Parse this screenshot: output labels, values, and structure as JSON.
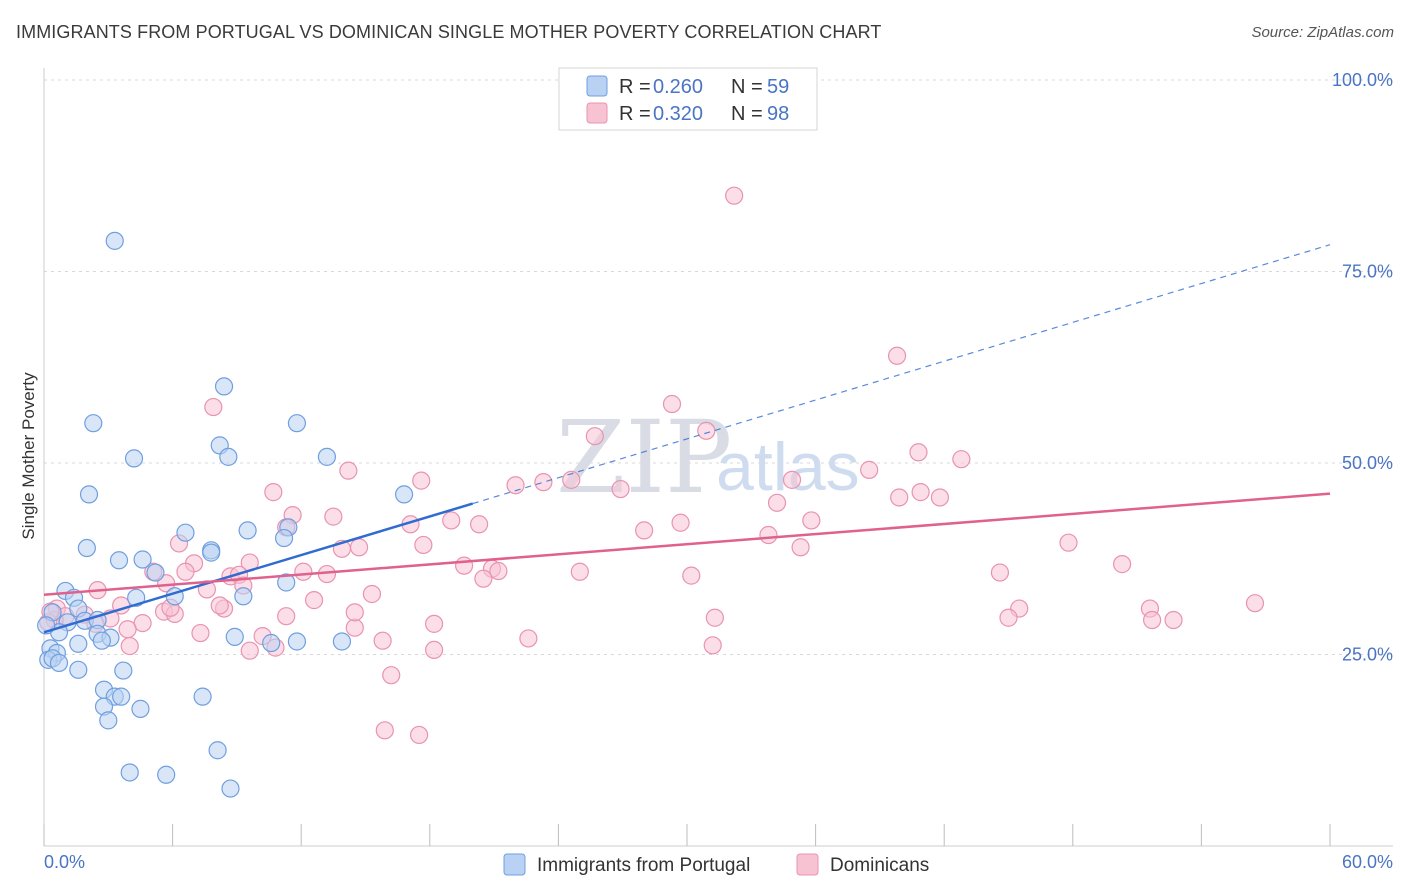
{
  "title": "IMMIGRANTS FROM PORTUGAL VS DOMINICAN SINGLE MOTHER POVERTY CORRELATION CHART",
  "source": "Source: ZipAtlas.com",
  "watermark": {
    "zip": "ZIP",
    "atlas": "atlas"
  },
  "colors": {
    "blue_fill": "#b9d1f2",
    "blue_stroke": "#6f9fe0",
    "blue_line": "#2f6bd1",
    "pink_fill": "#f7c3d3",
    "pink_stroke": "#e993b0",
    "pink_line": "#e0608e",
    "grid": "#d8d8d8",
    "tick_text": "#4a74c4"
  },
  "legend": {
    "rows": [
      {
        "r_label": "R = ",
        "r_value": "0.260",
        "n_label": "N = ",
        "n_value": "59"
      },
      {
        "r_label": "R = ",
        "r_value": "0.320",
        "n_label": "N = ",
        "n_value": "98"
      }
    ]
  },
  "bottom_legend": {
    "blue": "Immigrants from Portugal",
    "pink": "Dominicans"
  },
  "chart_data": {
    "type": "scatter",
    "title": "IMMIGRANTS FROM PORTUGAL VS DOMINICAN SINGLE MOTHER POVERTY CORRELATION CHART",
    "xlabel": "",
    "ylabel": "Single Mother Poverty",
    "xlim": [
      0,
      60
    ],
    "ylim": [
      0,
      100
    ],
    "x_tick_labels": {
      "left": "0.0%",
      "right": "60.0%"
    },
    "y_ticks": [
      {
        "value": 25,
        "label": "25.0%"
      },
      {
        "value": 50,
        "label": "50.0%"
      },
      {
        "value": 75,
        "label": "75.0%"
      },
      {
        "value": 100,
        "label": "100.0%"
      }
    ],
    "grid": true,
    "legend_position": "top-center",
    "series": [
      {
        "name": "Immigrants from Portugal",
        "color": "blue",
        "R": 0.26,
        "N": 59,
        "trend": {
          "x0": 0,
          "y0": 27.9,
          "x1": 20,
          "y1": 44.7,
          "dashed_to_x": 60,
          "dashed_to_y": 78.5
        },
        "points": [
          [
            3.3,
            79.0
          ],
          [
            8.4,
            60.0
          ],
          [
            2.3,
            55.2
          ],
          [
            11.8,
            55.2
          ],
          [
            4.2,
            50.6
          ],
          [
            8.2,
            52.3
          ],
          [
            8.6,
            50.8
          ],
          [
            13.2,
            50.8
          ],
          [
            2.1,
            45.9
          ],
          [
            16.8,
            45.9
          ],
          [
            11.4,
            41.6
          ],
          [
            6.6,
            40.9
          ],
          [
            9.5,
            41.2
          ],
          [
            11.2,
            40.2
          ],
          [
            2.0,
            38.9
          ],
          [
            3.5,
            37.3
          ],
          [
            4.6,
            37.4
          ],
          [
            7.8,
            38.6
          ],
          [
            7.8,
            38.3
          ],
          [
            5.2,
            35.7
          ],
          [
            11.3,
            34.4
          ],
          [
            6.1,
            32.6
          ],
          [
            4.3,
            32.4
          ],
          [
            9.3,
            32.6
          ],
          [
            1.0,
            33.3
          ],
          [
            1.4,
            32.4
          ],
          [
            0.4,
            30.5
          ],
          [
            1.6,
            31.0
          ],
          [
            1.9,
            29.4
          ],
          [
            2.5,
            29.5
          ],
          [
            1.1,
            29.2
          ],
          [
            0.7,
            27.9
          ],
          [
            2.5,
            27.7
          ],
          [
            3.1,
            27.2
          ],
          [
            2.7,
            26.8
          ],
          [
            1.6,
            26.4
          ],
          [
            0.3,
            25.8
          ],
          [
            0.6,
            25.2
          ],
          [
            8.9,
            27.3
          ],
          [
            11.8,
            26.7
          ],
          [
            13.9,
            26.7
          ],
          [
            10.6,
            26.5
          ],
          [
            0.2,
            24.3
          ],
          [
            0.4,
            24.5
          ],
          [
            0.7,
            23.9
          ],
          [
            1.6,
            23.0
          ],
          [
            3.7,
            22.9
          ],
          [
            2.8,
            20.4
          ],
          [
            3.3,
            19.5
          ],
          [
            3.6,
            19.5
          ],
          [
            7.4,
            19.5
          ],
          [
            2.8,
            18.2
          ],
          [
            4.5,
            17.9
          ],
          [
            3.0,
            16.4
          ],
          [
            8.1,
            12.5
          ],
          [
            4.0,
            9.6
          ],
          [
            5.7,
            9.3
          ],
          [
            8.7,
            7.5
          ],
          [
            0.1,
            28.8
          ]
        ]
      },
      {
        "name": "Dominicans",
        "color": "pink",
        "R": 0.32,
        "N": 98,
        "trend": {
          "x0": 0,
          "y0": 32.8,
          "x1": 60,
          "y1": 46.0
        },
        "points": [
          [
            32.2,
            84.9
          ],
          [
            39.8,
            64.0
          ],
          [
            29.3,
            57.7
          ],
          [
            7.9,
            57.3
          ],
          [
            25.7,
            53.5
          ],
          [
            30.9,
            54.2
          ],
          [
            40.8,
            51.4
          ],
          [
            42.8,
            50.5
          ],
          [
            14.2,
            49.0
          ],
          [
            38.5,
            49.1
          ],
          [
            17.6,
            47.7
          ],
          [
            22.0,
            47.1
          ],
          [
            23.3,
            47.5
          ],
          [
            24.6,
            47.8
          ],
          [
            26.9,
            46.6
          ],
          [
            34.9,
            47.8
          ],
          [
            10.7,
            46.2
          ],
          [
            39.9,
            45.5
          ],
          [
            40.9,
            46.2
          ],
          [
            41.8,
            45.5
          ],
          [
            34.2,
            44.8
          ],
          [
            11.6,
            43.2
          ],
          [
            13.5,
            43.0
          ],
          [
            17.1,
            42.0
          ],
          [
            19.0,
            42.5
          ],
          [
            20.3,
            42.0
          ],
          [
            29.7,
            42.2
          ],
          [
            35.8,
            42.5
          ],
          [
            11.3,
            41.6
          ],
          [
            28.0,
            41.2
          ],
          [
            33.8,
            40.6
          ],
          [
            35.3,
            39.0
          ],
          [
            47.8,
            39.6
          ],
          [
            6.3,
            39.5
          ],
          [
            13.9,
            38.8
          ],
          [
            14.7,
            39.0
          ],
          [
            17.7,
            39.3
          ],
          [
            7.0,
            36.9
          ],
          [
            9.6,
            37.0
          ],
          [
            19.6,
            36.6
          ],
          [
            25.0,
            35.8
          ],
          [
            30.2,
            35.3
          ],
          [
            50.3,
            36.8
          ],
          [
            5.1,
            35.8
          ],
          [
            5.7,
            34.3
          ],
          [
            6.6,
            35.8
          ],
          [
            8.7,
            35.2
          ],
          [
            9.1,
            35.4
          ],
          [
            12.1,
            35.8
          ],
          [
            13.2,
            35.5
          ],
          [
            20.9,
            36.2
          ],
          [
            21.2,
            35.9
          ],
          [
            20.5,
            34.9
          ],
          [
            44.6,
            35.7
          ],
          [
            2.5,
            33.4
          ],
          [
            7.6,
            33.5
          ],
          [
            9.3,
            34.0
          ],
          [
            15.3,
            32.9
          ],
          [
            12.6,
            32.1
          ],
          [
            3.6,
            31.4
          ],
          [
            5.6,
            30.6
          ],
          [
            1.9,
            30.2
          ],
          [
            3.1,
            29.7
          ],
          [
            2.4,
            29.0
          ],
          [
            0.6,
            31.0
          ],
          [
            1.0,
            30.0
          ],
          [
            0.5,
            29.5
          ],
          [
            4.6,
            29.1
          ],
          [
            6.1,
            30.3
          ],
          [
            8.4,
            31.0
          ],
          [
            11.3,
            30.0
          ],
          [
            18.2,
            29.0
          ],
          [
            31.3,
            29.8
          ],
          [
            45.5,
            31.0
          ],
          [
            45.0,
            29.8
          ],
          [
            51.6,
            31.0
          ],
          [
            56.5,
            31.7
          ],
          [
            51.7,
            29.5
          ],
          [
            52.7,
            29.5
          ],
          [
            7.3,
            27.8
          ],
          [
            3.9,
            28.3
          ],
          [
            10.2,
            27.4
          ],
          [
            14.5,
            28.5
          ],
          [
            15.8,
            26.8
          ],
          [
            22.6,
            27.1
          ],
          [
            31.2,
            26.2
          ],
          [
            4.0,
            26.1
          ],
          [
            9.6,
            25.5
          ],
          [
            10.8,
            25.9
          ],
          [
            18.2,
            25.6
          ],
          [
            16.2,
            22.3
          ],
          [
            15.9,
            15.1
          ],
          [
            17.5,
            14.5
          ],
          [
            8.2,
            31.4
          ],
          [
            0.2,
            29.2
          ],
          [
            0.3,
            30.6
          ],
          [
            14.5,
            30.5
          ],
          [
            5.9,
            31.1
          ]
        ]
      }
    ]
  }
}
